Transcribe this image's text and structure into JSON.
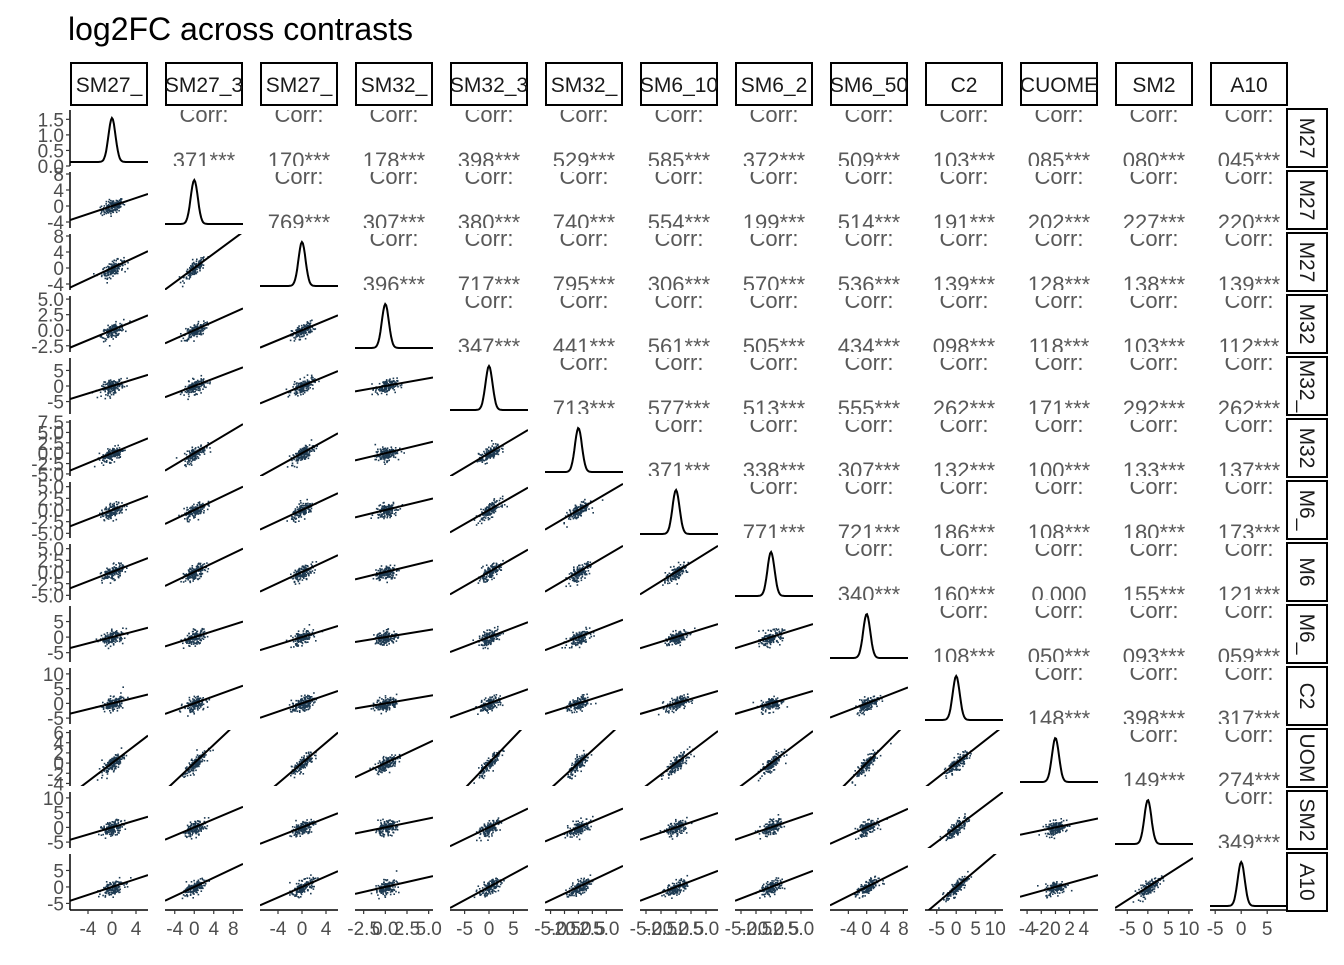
{
  "chart_data": {
    "type": "scatter",
    "title": "log2FC across contrasts",
    "panel_layout": "pairs-matrix",
    "diagonal": "density",
    "upper": "correlation",
    "lower": "scatter-with-fit-line",
    "corr_label": "Corr:",
    "variables": [
      "SM27_",
      "SM27_3",
      "SM27_",
      "SM32_",
      "SM32_3",
      "SM32_",
      "SM6_10",
      "SM6_2",
      "SM6_50",
      "C2",
      "CUOME",
      "SM2",
      "A10"
    ],
    "row_strips": [
      "M27",
      "M27",
      "M27",
      "M32",
      "M32_",
      "M32",
      "M6_",
      "M6",
      "M6_",
      "C2",
      "UOM",
      "SM2",
      "A10"
    ],
    "correlations": [
      [
        "",
        "371***",
        "170***",
        "178***",
        "398***",
        "529***",
        "585***",
        "372***",
        "509***",
        "103***",
        "085***",
        "080***",
        "045***"
      ],
      [
        "",
        "",
        "769***",
        "307***",
        "380***",
        "740***",
        "554***",
        "199***",
        "514***",
        "191***",
        "202***",
        "227***",
        "220***"
      ],
      [
        "",
        "",
        "",
        "396***",
        "717***",
        "795***",
        "306***",
        "570***",
        "536***",
        "139***",
        "128***",
        "138***",
        "139***"
      ],
      [
        "",
        "",
        "",
        "",
        "347***",
        "441***",
        "561***",
        "505***",
        "434***",
        "098***",
        "118***",
        "103***",
        "112***"
      ],
      [
        "",
        "",
        "",
        "",
        "",
        "713***",
        "577***",
        "513***",
        "555***",
        "262***",
        "171***",
        "292***",
        "262***"
      ],
      [
        "",
        "",
        "",
        "",
        "",
        "",
        "371***",
        "338***",
        "307***",
        "132***",
        "100***",
        "133***",
        "137***"
      ],
      [
        "",
        "",
        "",
        "",
        "",
        "",
        "",
        "771***",
        "721***",
        "186***",
        "108***",
        "180***",
        "173***"
      ],
      [
        "",
        "",
        "",
        "",
        "",
        "",
        "",
        "",
        "340***",
        "160***",
        "0.000",
        "155***",
        "121***"
      ],
      [
        "",
        "",
        "",
        "",
        "",
        "",
        "",
        "",
        "",
        "108***",
        "050***",
        "093***",
        "059***"
      ],
      [
        "",
        "",
        "",
        "",
        "",
        "",
        "",
        "",
        "",
        "",
        "148***",
        "398***",
        "317***"
      ],
      [
        "",
        "",
        "",
        "",
        "",
        "",
        "",
        "",
        "",
        "",
        "",
        "149***",
        "274***"
      ],
      [
        "",
        "",
        "",
        "",
        "",
        "",
        "",
        "",
        "",
        "",
        "",
        "",
        "349***"
      ],
      [
        "",
        "",
        "",
        "",
        "",
        "",
        "",
        "",
        "",
        "",
        "",
        "",
        ""
      ]
    ],
    "y_axes": [
      {
        "range": [
          0.0,
          1.8
        ],
        "ticks": [
          0.0,
          0.5,
          1.0,
          1.5
        ],
        "labels": [
          "0.0",
          "0.5",
          "1.0",
          "1.5"
        ]
      },
      {
        "range": [
          -5.5,
          8.5
        ],
        "ticks": [
          -4,
          0,
          4,
          8
        ],
        "labels": [
          "-4",
          "0",
          "4",
          "8"
        ]
      },
      {
        "range": [
          -5.5,
          8.5
        ],
        "ticks": [
          -4,
          0,
          4,
          8
        ],
        "labels": [
          "-4",
          "0",
          "4",
          "8"
        ]
      },
      {
        "range": [
          -3.5,
          5.5
        ],
        "ticks": [
          -2.5,
          0.0,
          2.5,
          5.0
        ],
        "labels": [
          "-2.5",
          "0.0",
          "2.5",
          "5.0"
        ]
      },
      {
        "range": [
          -9,
          9
        ],
        "ticks": [
          -5,
          0,
          5
        ],
        "labels": [
          "-5",
          "0",
          "5"
        ]
      },
      {
        "range": [
          -5.5,
          8.0
        ],
        "ticks": [
          -5.0,
          -2.5,
          0.0,
          2.5,
          5.0,
          7.5
        ],
        "labels": [
          "-5.0",
          "-2.5",
          "0.0",
          "2.5",
          "5.0",
          "7.5"
        ]
      },
      {
        "range": [
          -6,
          6
        ],
        "ticks": [
          -5.0,
          -2.5,
          0.0,
          2.5,
          5.0
        ],
        "labels": [
          "-5.0",
          "-2.5",
          "0.0",
          "2.5",
          "5.0"
        ]
      },
      {
        "range": [
          -6,
          6
        ],
        "ticks": [
          -5.0,
          -2.5,
          0.0,
          2.5,
          5.0
        ],
        "labels": [
          "-5.0",
          "-2.5",
          "0.0",
          "2.5",
          "5.0"
        ]
      },
      {
        "range": [
          -8,
          10
        ],
        "ticks": [
          -5,
          0,
          5
        ],
        "labels": [
          "-5",
          "0",
          "5"
        ]
      },
      {
        "range": [
          -7,
          12
        ],
        "ticks": [
          -5,
          0,
          5,
          10
        ],
        "labels": [
          "-5",
          "0",
          "5",
          "10"
        ]
      },
      {
        "range": [
          -4.5,
          6.5
        ],
        "ticks": [
          -4,
          -2,
          0,
          2,
          4,
          6
        ],
        "labels": [
          "-4",
          "-2",
          "0",
          "2",
          "4",
          "6"
        ]
      },
      {
        "range": [
          -7,
          12
        ],
        "ticks": [
          -5,
          0,
          5,
          10
        ],
        "labels": [
          "-5",
          "0",
          "5",
          "10"
        ]
      },
      {
        "range": [
          -7,
          10
        ],
        "ticks": [
          -5,
          0,
          5
        ],
        "labels": [
          "-5",
          "0",
          "5"
        ]
      }
    ],
    "x_axes": [
      {
        "range": [
          -7,
          6
        ],
        "ticks": [
          -4,
          0,
          4
        ],
        "labels": [
          "-4",
          "0",
          "4"
        ]
      },
      {
        "range": [
          -6,
          10
        ],
        "ticks": [
          -4,
          0,
          4,
          8
        ],
        "labels": [
          "-4",
          "0",
          "4",
          "8"
        ]
      },
      {
        "range": [
          -7,
          6
        ],
        "ticks": [
          -4,
          0,
          4
        ],
        "labels": [
          "-4",
          "0",
          "4"
        ]
      },
      {
        "range": [
          -3.5,
          5.5
        ],
        "ticks": [
          -2.5,
          0.0,
          2.5,
          5.0
        ],
        "labels": [
          "-2.5",
          "0.0",
          "2.5",
          "5.0"
        ]
      },
      {
        "range": [
          -8,
          8
        ],
        "ticks": [
          -5,
          0,
          5
        ],
        "labels": [
          "-5",
          "0",
          "5"
        ]
      },
      {
        "range": [
          -6,
          8
        ],
        "ticks": [
          -5.0,
          -2.5,
          0.0,
          2.5,
          5.0
        ],
        "labels": [
          "-5.0",
          "-2.5",
          "0.0",
          "2.5",
          "5.0"
        ]
      },
      {
        "range": [
          -6,
          7
        ],
        "ticks": [
          -5.0,
          -2.5,
          0.0,
          2.5,
          5.0
        ],
        "labels": [
          "-5.0",
          "-2.5",
          "0.0",
          "2.5",
          "5.0"
        ]
      },
      {
        "range": [
          -6,
          7
        ],
        "ticks": [
          -5.0,
          -2.5,
          0.0,
          2.5,
          5.0
        ],
        "labels": [
          "-5.0",
          "-2.5",
          "0.0",
          "2.5",
          "5.0"
        ]
      },
      {
        "range": [
          -8,
          9
        ],
        "ticks": [
          -4,
          0,
          4,
          8
        ],
        "labels": [
          "-4",
          "0",
          "4",
          "8"
        ]
      },
      {
        "range": [
          -8,
          12
        ],
        "ticks": [
          -5,
          0,
          5,
          10
        ],
        "labels": [
          "-5",
          "0",
          "5",
          "10"
        ]
      },
      {
        "range": [
          -5,
          6
        ],
        "ticks": [
          -4,
          -2,
          0,
          2,
          4
        ],
        "labels": [
          "-4",
          "-2",
          "0",
          "2",
          "4"
        ]
      },
      {
        "range": [
          -8,
          11
        ],
        "ticks": [
          -5,
          0,
          5,
          10
        ],
        "labels": [
          "-5",
          "0",
          "5",
          "10"
        ]
      },
      {
        "range": [
          -6,
          9
        ],
        "ticks": [
          -5,
          0,
          5
        ],
        "labels": [
          "-5",
          "0",
          "5"
        ]
      }
    ],
    "fit_slopes": [
      [
        0,
        0,
        0,
        0,
        0,
        0,
        0,
        0,
        0,
        0,
        0,
        0,
        0
      ],
      [
        0.5,
        0,
        0,
        0,
        0,
        0,
        0,
        0,
        0,
        0,
        0,
        0,
        0
      ],
      [
        0.7,
        0.9,
        0,
        0,
        0,
        0,
        0,
        0,
        0,
        0,
        0,
        0,
        0
      ],
      [
        0.4,
        0.35,
        0.4,
        0,
        0,
        0,
        0,
        0,
        0,
        0,
        0,
        0,
        0
      ],
      [
        0.6,
        0.6,
        0.8,
        0.5,
        0,
        0,
        0,
        0,
        0,
        0,
        0,
        0,
        0
      ],
      [
        0.6,
        0.7,
        0.8,
        0.5,
        0.7,
        0,
        0,
        0,
        0,
        0,
        0,
        0,
        0
      ],
      [
        0.5,
        0.5,
        0.6,
        0.45,
        0.6,
        0.7,
        0,
        0,
        0,
        0,
        0,
        0,
        0
      ],
      [
        0.5,
        0.5,
        0.6,
        0.45,
        0.6,
        0.7,
        0.8,
        0,
        0,
        0,
        0,
        0,
        0
      ],
      [
        0.5,
        0.5,
        0.6,
        0.45,
        0.6,
        0.7,
        0.6,
        0.6,
        0,
        0,
        0,
        0,
        0
      ],
      [
        0.5,
        0.6,
        0.7,
        0.5,
        0.6,
        0.6,
        0.6,
        0.6,
        0.6,
        0,
        0,
        0,
        0
      ],
      [
        0.9,
        0.9,
        1.0,
        0.8,
        1.0,
        1.0,
        0.9,
        0.9,
        0.9,
        0.6,
        0,
        0,
        0
      ],
      [
        0.6,
        0.7,
        0.8,
        0.6,
        0.8,
        0.8,
        0.7,
        0.7,
        0.7,
        1.0,
        0.5,
        0,
        0
      ],
      [
        0.6,
        0.7,
        0.8,
        0.6,
        0.8,
        0.8,
        0.7,
        0.7,
        0.7,
        1.0,
        0.6,
        0.8,
        0
      ]
    ],
    "density_peaks": [
      1.75,
      0.22,
      0.22,
      0.45,
      0.18,
      0.22,
      0.3,
      0.3,
      0.2,
      0.22,
      0.35,
      0.22,
      0.35
    ],
    "point_color": "#1d3a52",
    "corr_text_color": "#595959",
    "grid": false,
    "legend": "none"
  }
}
